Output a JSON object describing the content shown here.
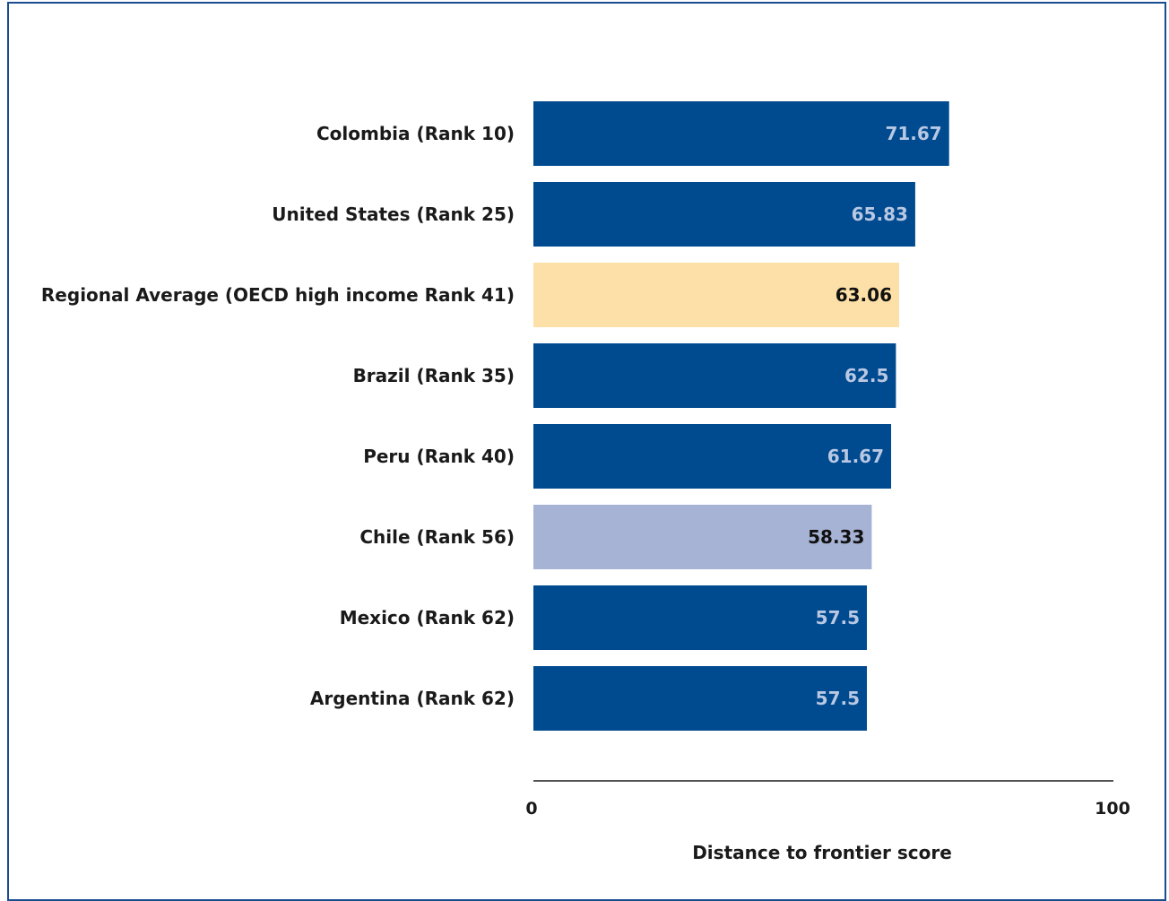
{
  "chart_data": {
    "type": "bar",
    "orientation": "horizontal",
    "categories": [
      "Colombia (Rank 10)",
      "United States (Rank 25)",
      "Regional Average (OECD high income Rank 41)",
      "Brazil (Rank 35)",
      "Peru (Rank 40)",
      "Chile (Rank 56)",
      "Mexico (Rank 62)",
      "Argentina (Rank 62)"
    ],
    "values": [
      71.67,
      65.83,
      63.06,
      62.5,
      61.67,
      58.33,
      57.5,
      57.5
    ],
    "value_labels": [
      "71.67",
      "65.83",
      "63.06",
      "62.5",
      "61.67",
      "58.33",
      "57.5",
      "57.5"
    ],
    "bar_colors": [
      "#004a8f",
      "#004a8f",
      "#fde0a7",
      "#004a8f",
      "#004a8f",
      "#a6b3d4",
      "#004a8f",
      "#004a8f"
    ],
    "label_colors": [
      "#b9c8e3",
      "#b9c8e3",
      "#111111",
      "#b9c8e3",
      "#b9c8e3",
      "#111111",
      "#b9c8e3",
      "#b9c8e3"
    ],
    "xlim": [
      0,
      100
    ],
    "x_ticks": [
      "0",
      "100"
    ],
    "xlabel": "Distance to frontier score",
    "title": "",
    "grid": false,
    "legend": "none"
  }
}
